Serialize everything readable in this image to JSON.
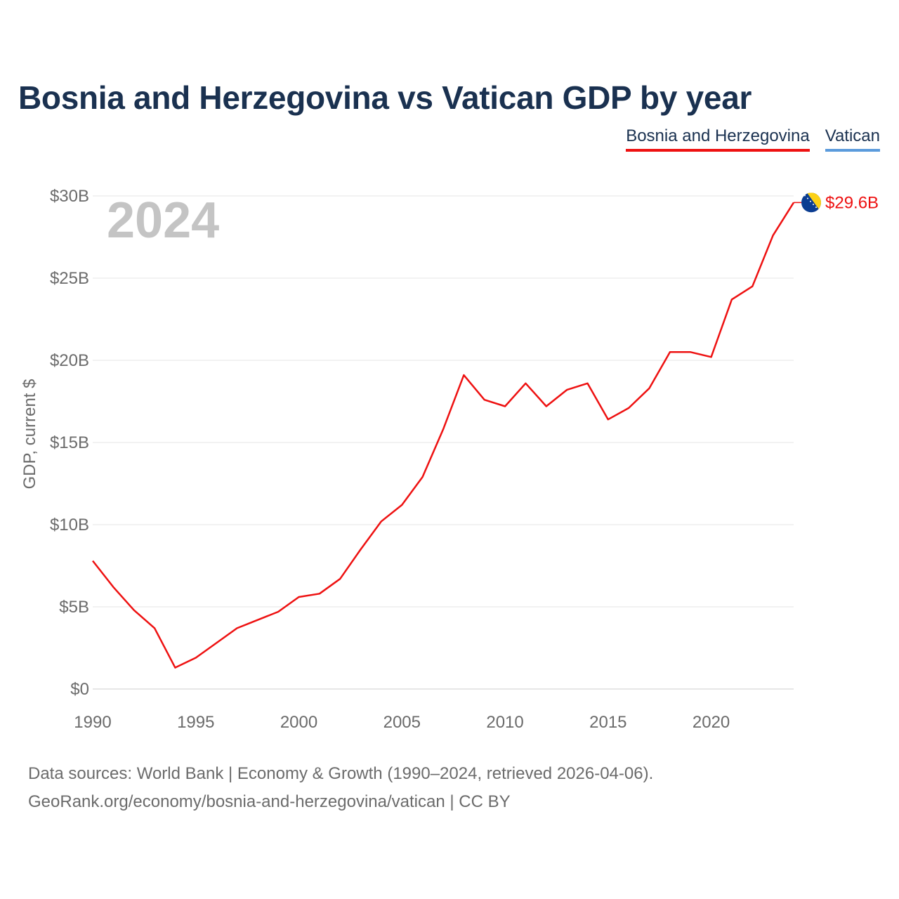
{
  "chart_data": {
    "type": "line",
    "title": "Bosnia and Herzegovina vs Vatican GDP by year",
    "ylabel": "GDP, current $",
    "xlabel": "",
    "year_watermark": "2024",
    "xlim": [
      1990,
      2024
    ],
    "ylim": [
      0,
      30
    ],
    "y_ticks": [
      {
        "value": 0,
        "label": "$0"
      },
      {
        "value": 5,
        "label": "$5B"
      },
      {
        "value": 10,
        "label": "$10B"
      },
      {
        "value": 15,
        "label": "$15B"
      },
      {
        "value": 20,
        "label": "$20B"
      },
      {
        "value": 25,
        "label": "$25B"
      },
      {
        "value": 30,
        "label": "$30B"
      }
    ],
    "x_ticks": [
      {
        "value": 1990,
        "label": "1990"
      },
      {
        "value": 1995,
        "label": "1995"
      },
      {
        "value": 2000,
        "label": "2000"
      },
      {
        "value": 2005,
        "label": "2005"
      },
      {
        "value": 2010,
        "label": "2010"
      },
      {
        "value": 2015,
        "label": "2015"
      },
      {
        "value": 2020,
        "label": "2020"
      }
    ],
    "legend": [
      {
        "name": "Bosnia and Herzegovina",
        "color": "#ee1111"
      },
      {
        "name": "Vatican",
        "color": "#5b9bdc"
      }
    ],
    "series": [
      {
        "name": "Bosnia and Herzegovina",
        "color": "#ee1111",
        "end_label": "$29.6B",
        "x": [
          1990,
          1991,
          1992,
          1993,
          1994,
          1995,
          1996,
          1997,
          1998,
          1999,
          2000,
          2001,
          2002,
          2003,
          2004,
          2005,
          2006,
          2007,
          2008,
          2009,
          2010,
          2011,
          2012,
          2013,
          2014,
          2015,
          2016,
          2017,
          2018,
          2019,
          2020,
          2021,
          2022,
          2023,
          2024
        ],
        "values": [
          7.8,
          6.2,
          4.8,
          3.7,
          1.3,
          1.9,
          2.8,
          3.7,
          4.2,
          4.7,
          5.6,
          5.8,
          6.7,
          8.5,
          10.2,
          11.2,
          12.9,
          15.8,
          19.1,
          17.6,
          17.2,
          18.6,
          17.2,
          18.2,
          18.6,
          16.4,
          17.1,
          18.3,
          20.5,
          20.5,
          20.2,
          23.7,
          24.5,
          27.6,
          29.6
        ]
      }
    ]
  },
  "footer": {
    "line1": "Data sources: World Bank | Economy & Growth (1990–2024, retrieved 2026-04-06).",
    "line2": "GeoRank.org/economy/bosnia-and-herzegovina/vatican | CC BY"
  }
}
